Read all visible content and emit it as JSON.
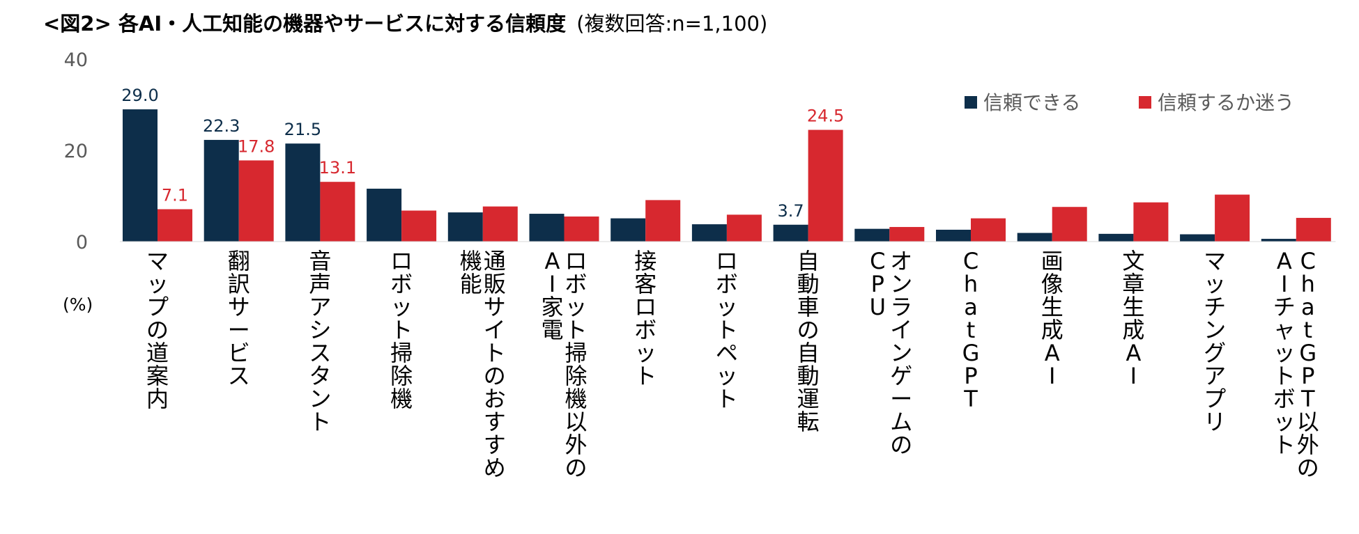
{
  "chart_data": {
    "type": "bar",
    "title": "<図2> 各AI・人工知能の機器やサービスに対する信頼度",
    "subtitle": "(複数回答:n=1,100)",
    "ylabel": "(%)",
    "ylim": [
      0,
      40
    ],
    "yticks": [
      0,
      20,
      40
    ],
    "categories": [
      "マップの道案内",
      "翻訳サービス",
      "音声アシスタント",
      "ロボット掃除機",
      "通販サイトのおすすめ機能",
      "ロボット掃除機以外のAI家電",
      "接客ロボット",
      "ロボットペット",
      "自動車の自動運転",
      "オンラインゲームのCPU",
      "ChatGPT",
      "画像生成AI",
      "文章生成AI",
      "マッチングアプリ",
      "ChatGPT以外のAIチャットボット"
    ],
    "category_label_columns": [
      [
        "マップの道案内"
      ],
      [
        "翻訳サービス"
      ],
      [
        "音声アシスタント"
      ],
      [
        "ロボット掃除機"
      ],
      [
        "通販サイトのおすすめ",
        "機能"
      ],
      [
        "ロボット掃除機以外の",
        "AI家電"
      ],
      [
        "接客ロボット"
      ],
      [
        "ロボットペット"
      ],
      [
        "自動車の自動運転"
      ],
      [
        "オンラインゲームの",
        "CPU"
      ],
      [
        "ChatGPT"
      ],
      [
        "画像生成AI"
      ],
      [
        "文章生成AI"
      ],
      [
        "マッチングアプリ"
      ],
      [
        "ChatGPT以外の",
        "AIチャットボット"
      ]
    ],
    "series": [
      {
        "name": "信頼できる",
        "color": "#0d2e4a",
        "values": [
          29.0,
          22.3,
          21.5,
          11.6,
          6.4,
          6.1,
          5.1,
          3.8,
          3.7,
          2.8,
          2.6,
          1.9,
          1.7,
          1.6,
          0.6
        ],
        "labels": [
          "29.0",
          "22.3",
          "21.5",
          null,
          null,
          null,
          null,
          null,
          "3.7",
          null,
          null,
          null,
          null,
          null,
          null
        ]
      },
      {
        "name": "信頼するか迷う",
        "color": "#d7282f",
        "values": [
          7.1,
          17.8,
          13.1,
          6.8,
          7.7,
          5.5,
          9.1,
          5.9,
          24.5,
          3.2,
          5.1,
          7.6,
          8.6,
          10.3,
          5.2
        ],
        "labels": [
          "7.1",
          "17.8",
          "13.1",
          null,
          null,
          null,
          null,
          null,
          "24.5",
          null,
          null,
          null,
          null,
          null,
          null
        ]
      }
    ],
    "legend": {
      "position": "top-right"
    }
  }
}
